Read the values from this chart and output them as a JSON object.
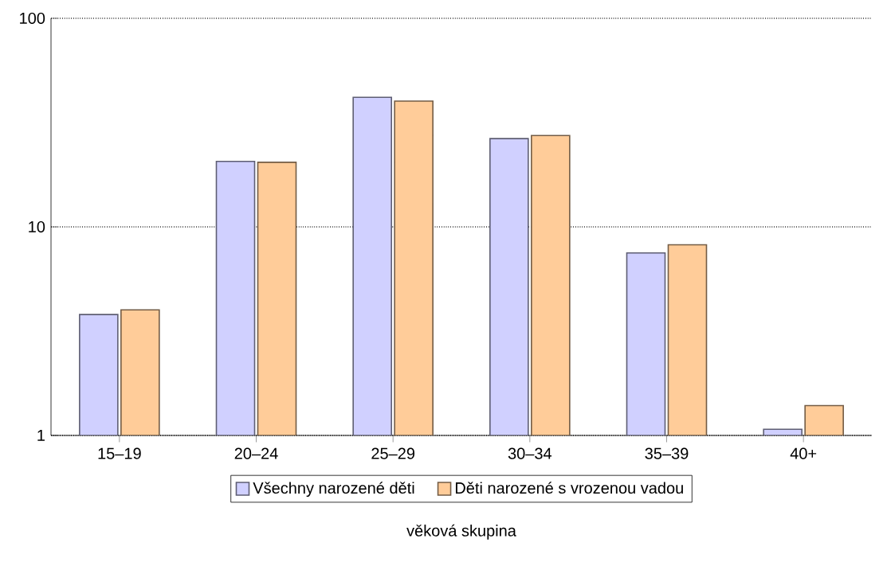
{
  "chart_data": {
    "type": "bar",
    "xlabel": "věková skupina",
    "categories": [
      "15–19",
      "20–24",
      "25–29",
      "30–34",
      "35–39",
      "40+"
    ],
    "series": [
      {
        "name": "Všechny narozené děti",
        "color": "#d0d0ff",
        "values": [
          3.8,
          20.6,
          41.8,
          26.5,
          7.5,
          1.07
        ]
      },
      {
        "name": "Děti narozené s vrozenou vadou",
        "color": "#ffcc99",
        "values": [
          4.0,
          20.4,
          40.1,
          27.4,
          8.2,
          1.39
        ]
      }
    ],
    "log": "y",
    "ylim": [
      1,
      100
    ],
    "yticks": [
      1,
      10,
      100
    ],
    "grid": "y",
    "legend": "bottom"
  }
}
